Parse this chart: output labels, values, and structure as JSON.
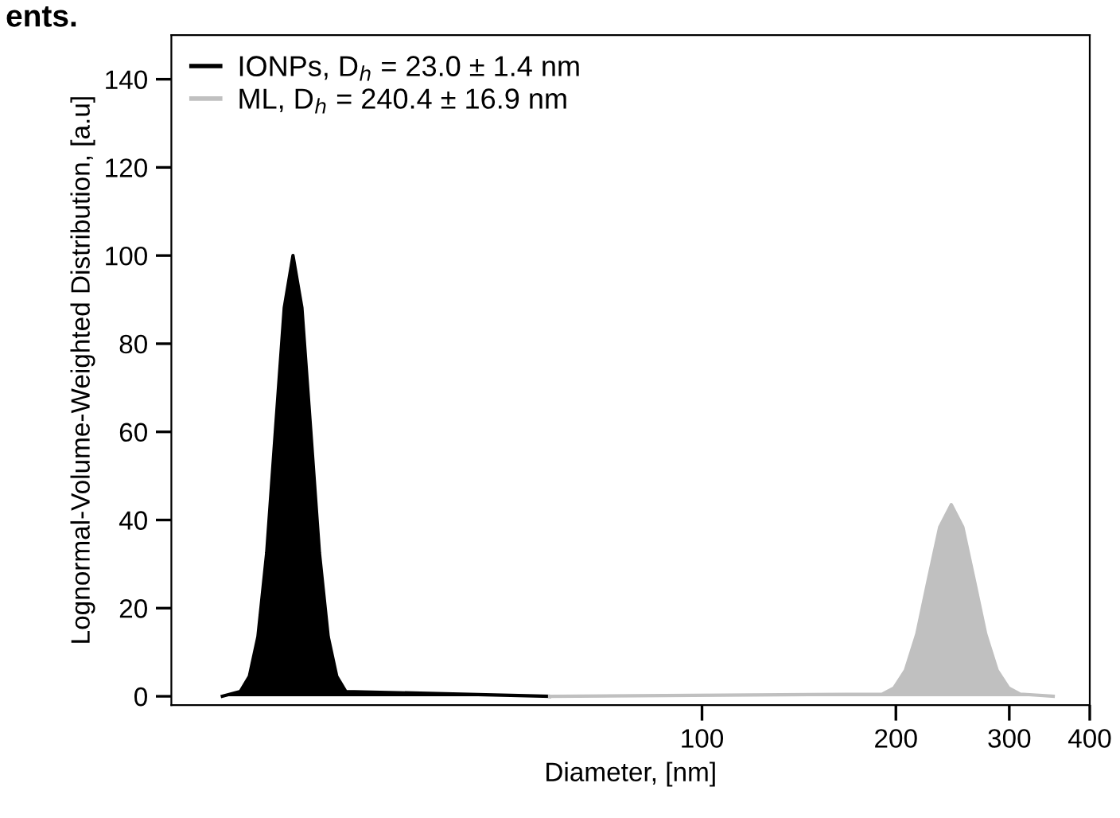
{
  "chart_data": {
    "type": "area",
    "xlabel": "Diameter, [nm]",
    "ylabel": "Lognormal-Volume-Weighted Distribution, [a.u]",
    "annotations": [
      "ents."
    ],
    "log": "x",
    "xlim": [
      15,
      400
    ],
    "xticks": [
      100,
      200,
      300,
      400
    ],
    "ylim": [
      -2,
      150
    ],
    "yticks": [
      0,
      20,
      40,
      60,
      80,
      100,
      120,
      140
    ],
    "grid": false,
    "legend": "top left",
    "series": [
      {
        "name": "IONPs, D$_{h}$ = 23.0 ± 1.4 nm",
        "color": "#000000",
        "x": [
          18,
          19.19,
          19.82,
          20.44,
          21.09,
          21.77,
          22.46,
          23.17,
          23.92,
          24.68,
          25.47,
          26.28,
          27.1,
          27.99,
          58
        ],
        "values": [
          0,
          1.1,
          4.5,
          13.5,
          32.5,
          60.7,
          88.2,
          100,
          88.2,
          60.7,
          32.5,
          13.5,
          4.5,
          1.1,
          0
        ]
      },
      {
        "name": "ML, D$_{h}$ = 240.4 ± 16.9 nm",
        "color": "#c0c0c0",
        "x": [
          58,
          190.5,
          198.6,
          206.9,
          215.5,
          224.5,
          233.9,
          243.8,
          254.1,
          264.7,
          275.8,
          287.3,
          299.4,
          311.9,
          351
        ],
        "values": [
          0,
          0.5,
          1.9,
          5.9,
          14.1,
          26.4,
          38.4,
          43.5,
          38.4,
          26.4,
          14.1,
          5.9,
          1.9,
          0.5,
          0
        ]
      }
    ]
  }
}
